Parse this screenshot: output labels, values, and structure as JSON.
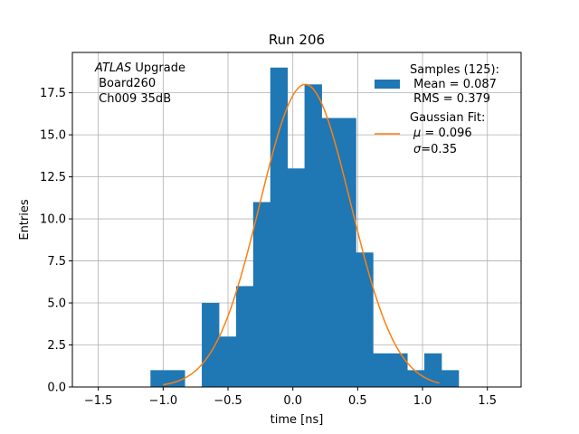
{
  "chart_data": {
    "type": "bar",
    "title": "Run 206",
    "xlabel": "time [ns]",
    "ylabel": "Entries",
    "xlim": [
      -1.7,
      1.76
    ],
    "ylim": [
      0,
      19.9
    ],
    "grid": true,
    "xticks": [
      -1.5,
      -1.0,
      -0.5,
      0.0,
      0.5,
      1.0,
      1.5
    ],
    "xtick_labels": [
      "−1.5",
      "−1.0",
      "−0.5",
      "0.0",
      "0.5",
      "1.0",
      "1.5"
    ],
    "yticks": [
      0,
      2.5,
      5,
      7.5,
      10,
      12.5,
      15,
      17.5
    ],
    "ytick_labels": [
      "0.0",
      "2.5",
      "5.0",
      "7.5",
      "10.0",
      "12.5",
      "15.0",
      "17.5"
    ],
    "histogram": {
      "name": "Samples (125):",
      "color": "#1f77b4",
      "bin_edges": [
        -1.098,
        -0.966,
        -0.834,
        -0.702,
        -0.57,
        -0.438,
        -0.306,
        -0.174,
        -0.042,
        0.09,
        0.222,
        0.354,
        0.486,
        0.618,
        0.75,
        0.882,
        1.014,
        1.146,
        1.278
      ],
      "bins": [
        {
          "x0": -1.098,
          "x1": -0.966,
          "count": 1
        },
        {
          "x0": -0.966,
          "x1": -0.834,
          "count": 1
        },
        {
          "x0": -0.834,
          "x1": -0.702,
          "count": 0
        },
        {
          "x0": -0.702,
          "x1": -0.57,
          "count": 5
        },
        {
          "x0": -0.57,
          "x1": -0.438,
          "count": 3
        },
        {
          "x0": -0.438,
          "x1": -0.306,
          "count": 6
        },
        {
          "x0": -0.306,
          "x1": -0.174,
          "count": 11
        },
        {
          "x0": -0.174,
          "x1": -0.042,
          "count": 19
        },
        {
          "x0": -0.042,
          "x1": 0.09,
          "count": 13
        },
        {
          "x0": 0.09,
          "x1": 0.222,
          "count": 18
        },
        {
          "x0": 0.222,
          "x1": 0.354,
          "count": 16
        },
        {
          "x0": 0.354,
          "x1": 0.486,
          "count": 16
        },
        {
          "x0": 0.486,
          "x1": 0.618,
          "count": 8
        },
        {
          "x0": 0.618,
          "x1": 0.75,
          "count": 2
        },
        {
          "x0": 0.75,
          "x1": 0.882,
          "count": 2
        },
        {
          "x0": 0.882,
          "x1": 1.014,
          "count": 1
        },
        {
          "x0": 1.014,
          "x1": 1.146,
          "count": 2
        },
        {
          "x0": 1.146,
          "x1": 1.278,
          "count": 1
        }
      ]
    },
    "fit": {
      "name": "Gaussian Fit:",
      "color": "#ff7f0e",
      "amplitude": 18.0,
      "mu": 0.096,
      "sigma": 0.35,
      "x_range": [
        -1.0,
        1.13
      ]
    },
    "legend": {
      "placement": "top-right",
      "hist_lines": [
        "Samples (125):",
        " Mean = 0.087",
        " RMS = 0.379"
      ],
      "fit_line1": "Gaussian Fit:",
      "fit_mu_symbol": "μ",
      "fit_mu_value": " = 0.096",
      "fit_sigma_symbol": "σ",
      "fit_sigma_value": "=0.35"
    },
    "annotation": {
      "experiment": "ATLAS",
      "experiment_suffix": " Upgrade",
      "line2": " Board260",
      "line3": " Ch009 35dB"
    }
  }
}
